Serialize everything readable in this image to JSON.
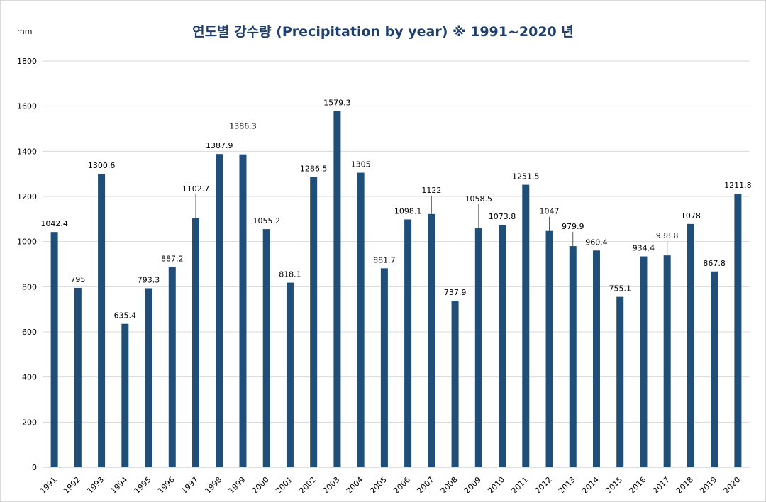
{
  "chart_data": {
    "type": "bar",
    "title": "연도별 강수량  (Precipitation by year) ※ 1991~2020 년",
    "ylabel": "mm",
    "xlabel": "",
    "ylim": [
      0,
      1800
    ],
    "yticks": [
      0,
      200,
      400,
      600,
      800,
      1000,
      1200,
      1400,
      1600,
      1800
    ],
    "grid": true,
    "bar_color": "#1f4e79",
    "categories": [
      "1991",
      "1992",
      "1993",
      "1994",
      "1995",
      "1996",
      "1997",
      "1998",
      "1999",
      "2000",
      "2001",
      "2002",
      "2003",
      "2004",
      "2005",
      "2006",
      "2007",
      "2008",
      "2009",
      "2010",
      "2011",
      "2012",
      "2013",
      "2014",
      "2015",
      "2016",
      "2017",
      "2018",
      "2019",
      "2020"
    ],
    "values": [
      1042.4,
      795,
      1300.6,
      635.4,
      793.3,
      887.2,
      1102.7,
      1387.9,
      1386.3,
      1055.2,
      818.1,
      1286.5,
      1579.3,
      1305,
      881.7,
      1098.1,
      1122,
      737.9,
      1058.5,
      1073.8,
      1251.5,
      1047,
      979.9,
      960.4,
      755.1,
      934.4,
      938.8,
      1078,
      867.8,
      1211.8
    ]
  }
}
